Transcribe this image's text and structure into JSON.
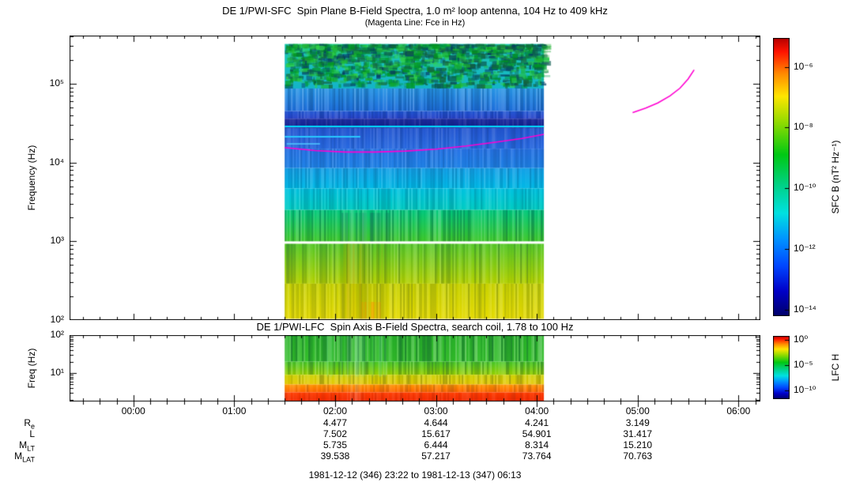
{
  "footer": "1981-12-12 (346) 23:22 to 1981-12-13 (347) 06:13",
  "time_axis": {
    "start_hours": -0.6333,
    "end_hours": 6.2167,
    "data_start_hours": 1.5,
    "data_end_hours": 4.07,
    "tick_hours": [
      0,
      1,
      2,
      3,
      4,
      5,
      6
    ],
    "tick_labels": [
      "00:00",
      "01:00",
      "02:00",
      "03:00",
      "04:00",
      "05:00",
      "06:00"
    ]
  },
  "palette": [
    {
      "p": 0.0,
      "c": "#b40000"
    },
    {
      "p": 0.05,
      "c": "#ff1400"
    },
    {
      "p": 0.13,
      "c": "#ff8c00"
    },
    {
      "p": 0.21,
      "c": "#ffe600"
    },
    {
      "p": 0.3,
      "c": "#96dc00"
    },
    {
      "p": 0.42,
      "c": "#00c814"
    },
    {
      "p": 0.53,
      "c": "#00d287"
    },
    {
      "p": 0.63,
      "c": "#00e1e1"
    },
    {
      "p": 0.72,
      "c": "#0096ff"
    },
    {
      "p": 0.82,
      "c": "#0046ff"
    },
    {
      "p": 0.91,
      "c": "#0000c8"
    },
    {
      "p": 1.0,
      "c": "#000069"
    }
  ],
  "chart_data": [
    {
      "type": "heatmap",
      "title": "DE 1/PWI-SFC  Spin Plane B-Field Spectra, 1.0 m² loop antenna, 104 Hz to 409 kHz",
      "subtitle": "(Magenta Line: Fce in Hz)",
      "ylabel": "Frequency (Hz)",
      "ylim": [
        100,
        409000
      ],
      "yticks": [
        {
          "exp": 5,
          "label": "10⁵"
        },
        {
          "exp": 4,
          "label": "10⁴"
        },
        {
          "exp": 3,
          "label": "10³"
        },
        {
          "exp": 2,
          "label": "10²"
        }
      ],
      "colorbar": {
        "label": "SFC B (nT² Hz⁻¹)",
        "range_exps": [
          -5.05,
          -14.2
        ],
        "ticks": [
          {
            "exp": -6,
            "label": "10⁻⁶"
          },
          {
            "exp": -8,
            "label": "10⁻⁸"
          },
          {
            "exp": -10,
            "label": "10⁻¹⁰"
          },
          {
            "exp": -12,
            "label": "10⁻¹²"
          },
          {
            "exp": -14,
            "label": "10⁻¹⁴"
          }
        ]
      },
      "bands": [
        {
          "f0": 87000,
          "f1": 320000,
          "top": "#1ec8b4",
          "bot": "#14b4c8",
          "noise": "blobs",
          "strength": 0.9
        },
        {
          "f0": 45000,
          "f1": 87000,
          "top": "#2896e6",
          "bot": "#1e6edc",
          "noise": "columns",
          "strength": 0.28
        },
        {
          "f0": 36000,
          "f1": 45000,
          "top": "#1e55d2",
          "bot": "#2841c8",
          "noise": "columns",
          "strength": 0.2
        },
        {
          "f0": 27500,
          "f1": 36000,
          "top": "#1e2da0",
          "bot": "#101e8c",
          "noise": "columns",
          "strength": 0.12
        },
        {
          "f0": 15000,
          "f1": 27500,
          "top": "#2355d0",
          "bot": "#2869e0",
          "noise": "columns",
          "strength": 0.18
        },
        {
          "f0": 8500,
          "f1": 15000,
          "top": "#2873e6",
          "bot": "#1e82e6",
          "noise": "columns",
          "strength": 0.18
        },
        {
          "f0": 4700,
          "f1": 8500,
          "top": "#14a0e8",
          "bot": "#00b9e6",
          "noise": "columns",
          "strength": 0.2
        },
        {
          "f0": 2500,
          "f1": 4700,
          "top": "#00c3e1",
          "bot": "#00cdc3",
          "noise": "columns",
          "strength": 0.2
        },
        {
          "f0": 1000,
          "f1": 2500,
          "top": "#00c87d",
          "bot": "#3cc828",
          "noise": "columns",
          "strength": 0.3
        },
        {
          "f0": 290,
          "f1": 930,
          "top": "#55c828",
          "bot": "#b4d200",
          "noise": "columns",
          "strength": 0.25
        },
        {
          "f0": 104,
          "f1": 290,
          "top": "#c8d200",
          "bot": "#e6dc00",
          "noise": "columns",
          "strength": 0.22
        }
      ],
      "overlays": [
        {
          "t0": 2.05,
          "t1": 2.55,
          "f0": 1000,
          "f1": 2300,
          "color": "#145a64",
          "alpha": 0.45
        },
        {
          "t0": 2.05,
          "t1": 2.5,
          "f0": 104,
          "f1": 930,
          "color": "#8c9600",
          "alpha": 0.3
        },
        {
          "t0": 2.1,
          "t1": 2.3,
          "f0": 104,
          "f1": 930,
          "color": "#c8a000",
          "alpha": 0.35
        },
        {
          "t0": 2.2,
          "t1": 2.45,
          "f0": 104,
          "f1": 170,
          "color": "#ff8c00",
          "alpha": 0.5
        }
      ],
      "lines": [
        {
          "t0": 1.5,
          "t1": 4.07,
          "f": 29000,
          "w": 2,
          "color": "#00dcff"
        },
        {
          "t0": 1.5,
          "t1": 2.25,
          "f": 21500,
          "w": 2,
          "color": "#28c8ff"
        },
        {
          "t0": 1.52,
          "t1": 1.85,
          "f": 17500,
          "w": 1.5,
          "color": "#50c8ff"
        }
      ],
      "fce_color": "#ff00d2",
      "fce_lines": [
        {
          "t": [
            1.5,
            1.8,
            2.1,
            2.4,
            2.7,
            3.0,
            3.3,
            3.6,
            3.85,
            4.07
          ],
          "f": [
            15500,
            14200,
            13600,
            13600,
            14000,
            14800,
            16200,
            18200,
            20200,
            22800
          ]
        },
        {
          "t": [
            4.95,
            5.08,
            5.2,
            5.32,
            5.42,
            5.5,
            5.56
          ],
          "f": [
            43000,
            49000,
            57000,
            70000,
            88000,
            115000,
            150000
          ]
        }
      ]
    },
    {
      "type": "heatmap",
      "title": "DE 1/PWI-LFC  Spin Axis B-Field Spectra, search coil, 1.78 to 100 Hz",
      "ylabel": "Freq (Hz)",
      "ylim": [
        1.78,
        100
      ],
      "yticks": [
        {
          "exp": 2,
          "label": "10²"
        },
        {
          "exp": 1,
          "label": "10¹"
        }
      ],
      "colorbar": {
        "label": "LFC H",
        "range_exps": [
          0.8,
          -11.8
        ],
        "ticks": [
          {
            "exp": 0,
            "label": "10⁰"
          },
          {
            "exp": -5,
            "label": "10⁻⁵"
          },
          {
            "exp": -10,
            "label": "10⁻¹⁰"
          }
        ]
      },
      "bands": [
        {
          "f0": 20,
          "f1": 100,
          "top": "#28b428",
          "bot": "#32be28",
          "noise": "columns",
          "strength": 0.35
        },
        {
          "f0": 9,
          "f1": 20,
          "top": "#46c828",
          "bot": "#96d200",
          "noise": "columns",
          "strength": 0.3
        },
        {
          "f0": 5,
          "f1": 9,
          "top": "#cdd200",
          "bot": "#e6c800",
          "noise": "columns",
          "strength": 0.25
        },
        {
          "f0": 3.1,
          "f1": 5,
          "top": "#ff9600",
          "bot": "#ff6400",
          "noise": "columns",
          "strength": 0.18
        },
        {
          "f0": 1.78,
          "f1": 3.1,
          "top": "#ff3c00",
          "bot": "#f02800",
          "noise": "columns",
          "strength": 0.12
        }
      ],
      "overlays": [
        {
          "t0": 1.9,
          "t1": 2.5,
          "f0": 8,
          "f1": 100,
          "color": "#78e6a0",
          "alpha": 0.3
        },
        {
          "t0": 2.1,
          "t1": 2.25,
          "f0": 1.78,
          "f1": 100,
          "color": "#ffffff",
          "alpha": 0.18
        }
      ]
    }
  ],
  "ephemeris": {
    "value_hours": [
      2,
      3,
      4,
      5
    ],
    "rows": [
      {
        "label": "R",
        "sub": "e",
        "values": [
          "4.477",
          "4.644",
          "4.241",
          "3.149"
        ]
      },
      {
        "label": "L",
        "sub": "",
        "values": [
          "7.502",
          "15.617",
          "54.901",
          "31.417"
        ]
      },
      {
        "label": "M",
        "sub": "LT",
        "values": [
          "5.735",
          "6.444",
          "8.314",
          "15.210"
        ]
      },
      {
        "label": "M",
        "sub": "LAT",
        "values": [
          "39.538",
          "57.217",
          "73.764",
          "70.763"
        ]
      }
    ]
  }
}
